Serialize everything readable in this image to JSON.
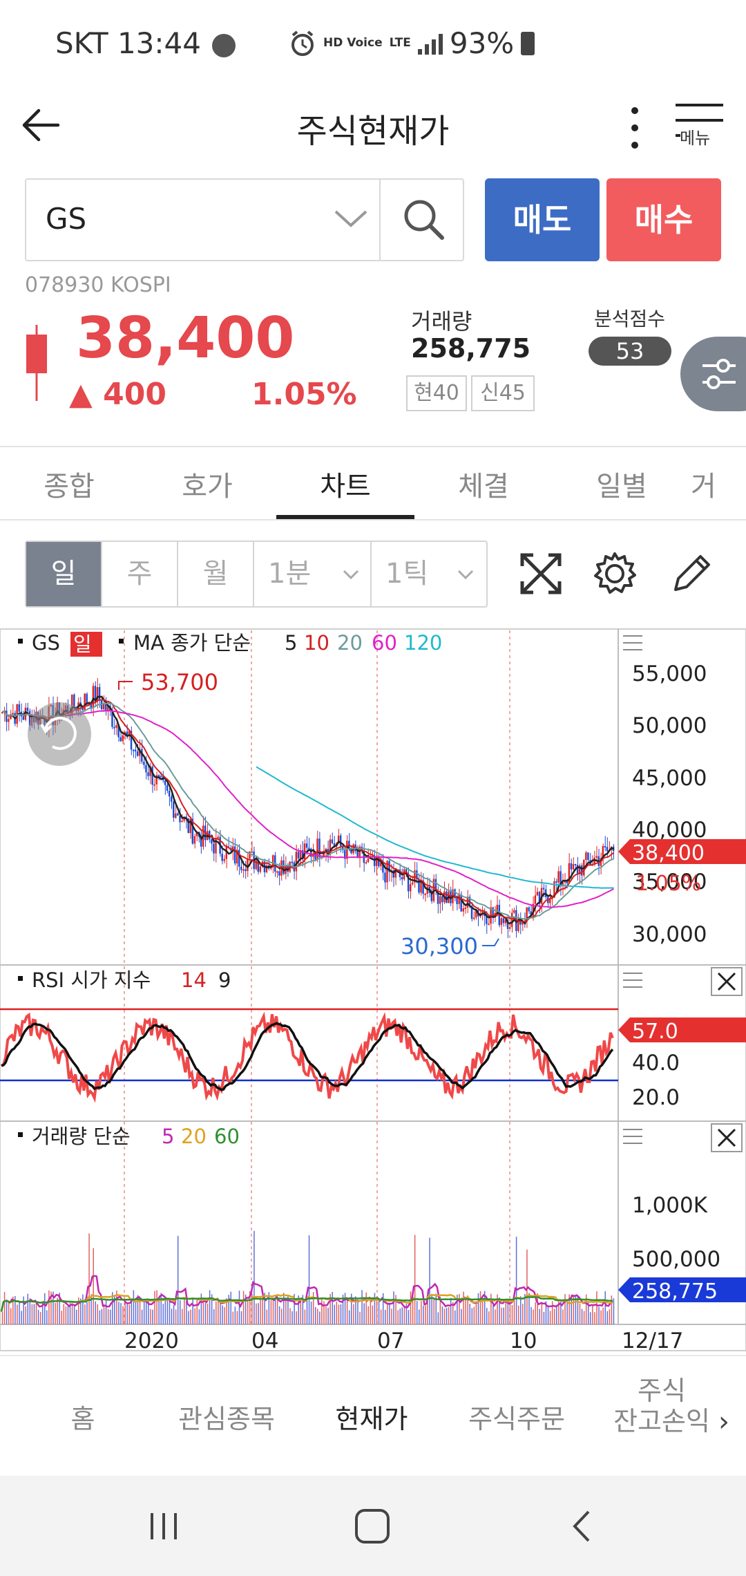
{
  "status": {
    "carrier_time": "SKT 13:44",
    "hd_voice": "HD Voice",
    "lte": "LTE",
    "battery": "93%"
  },
  "header": {
    "title": "주식현재가",
    "menu_label": "메뉴"
  },
  "search": {
    "stock_name": "GS"
  },
  "actions": {
    "sell": "매도",
    "buy": "매수"
  },
  "stock": {
    "code_market": "078930   KOSPI",
    "price": "38,400",
    "change": "▲ 400",
    "change_pct": "1.05%",
    "volume_label": "거래량",
    "volume": "258,775",
    "tag1": "현40",
    "tag2": "신45",
    "score_label": "분석점수",
    "score": "53"
  },
  "tabs": [
    "종합",
    "호가",
    "차트",
    "체결",
    "일별",
    "거"
  ],
  "period": [
    "일",
    "주",
    "월",
    "1분",
    "1틱"
  ],
  "chart": {
    "legend_stock": "GS",
    "legend_period": "일",
    "legend_ma": "MA  종가  단순",
    "ma_periods": [
      "5",
      "10",
      "20",
      "60",
      "120"
    ],
    "ma_colors": [
      "#222222",
      "#d42020",
      "#6a9c9a",
      "#e020c8",
      "#20b8d0"
    ],
    "high_label": "53,700",
    "low_label": "30,300",
    "price_ticks": [
      "55,000",
      "50,000",
      "45,000",
      "40,000",
      "35,000",
      "30,000"
    ],
    "current_price": "38,400",
    "current_pct": "1.05%",
    "rsi_legend": "RSI  시가  지수",
    "rsi_params": [
      "14",
      "9"
    ],
    "rsi_ticks": [
      "40.0",
      "20.0"
    ],
    "rsi_value": "57.0",
    "vol_legend": "거래량  단순",
    "vol_params": [
      "5",
      "20",
      "60"
    ],
    "vol_ticks": [
      "1,000K",
      "500,000"
    ],
    "vol_value": "258,775",
    "x_labels": [
      "2020",
      "04",
      "07",
      "10",
      "12/17"
    ]
  },
  "bottom_nav": [
    "홈",
    "관심종목",
    "현재가",
    "주식주문",
    "주식",
    "잔고손익"
  ],
  "chart_data": {
    "type": "candlestick",
    "x": [
      "2019-11",
      "2019-12",
      "2020-01",
      "2020-02",
      "2020-03",
      "2020-04",
      "2020-05",
      "2020-06",
      "2020-07",
      "2020-08",
      "2020-09",
      "2020-10",
      "2020-11",
      "2020-12-17"
    ],
    "close": [
      50500,
      50000,
      52000,
      46000,
      40000,
      37500,
      37000,
      39000,
      36500,
      35000,
      33000,
      32000,
      36000,
      38400
    ],
    "ylim": [
      29000,
      57000
    ],
    "annotations": [
      {
        "label": "53,700",
        "type": "high"
      },
      {
        "label": "30,300",
        "type": "low"
      }
    ],
    "rsi_last": 57.0,
    "volume_last": 258775
  }
}
